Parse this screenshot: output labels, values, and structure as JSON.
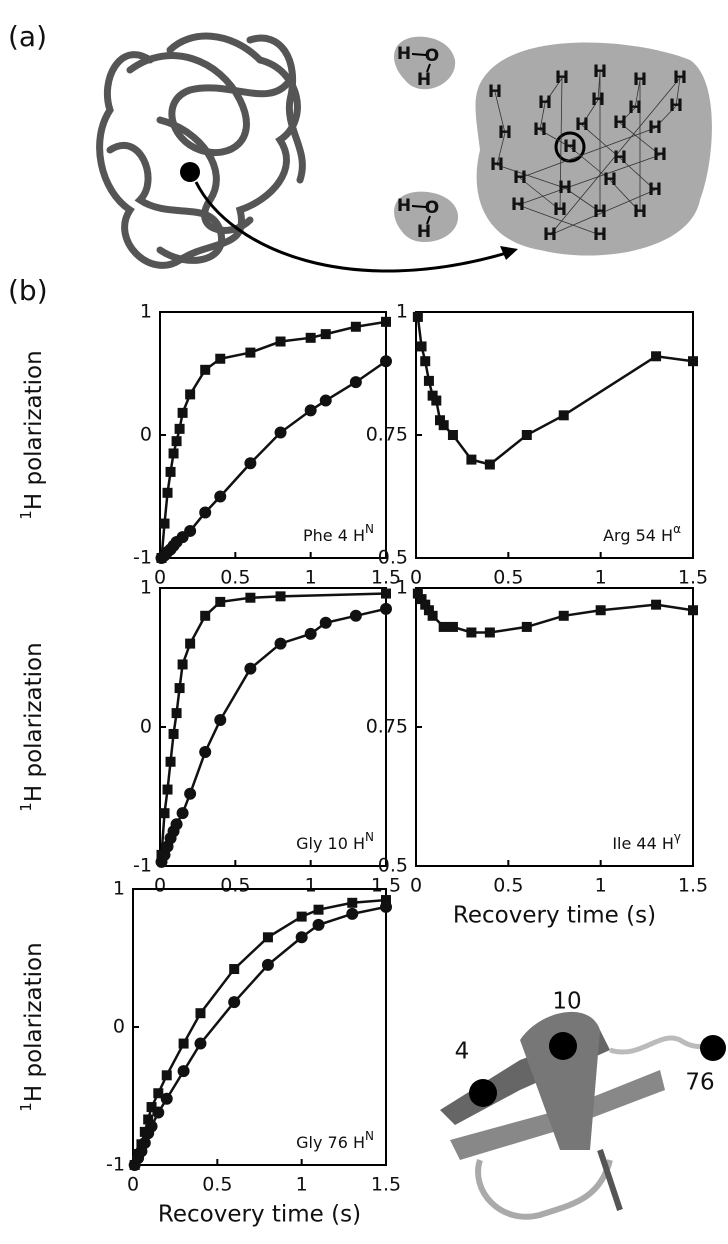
{
  "panel_a": {
    "label": "(a)",
    "water_1": [
      "H",
      "O",
      "H"
    ],
    "water_2": [
      "H",
      "O",
      "H"
    ],
    "cloud": [
      "H",
      "H",
      "H",
      "H",
      "H",
      "H",
      "H",
      "H",
      "H",
      "H",
      "H",
      "H",
      "H",
      "H",
      "H",
      "H",
      "H",
      "H",
      "H",
      "H",
      "H",
      "H",
      "H",
      "H",
      "H",
      "H",
      "H",
      "H"
    ]
  },
  "panel_b": {
    "label": "(b)",
    "residues": [
      "10",
      "4",
      "76"
    ]
  },
  "chart_data": [
    {
      "type": "scatter",
      "ylabel_sup": "1",
      "ylabel": "H polarization",
      "label": "Phe 4 H",
      "label_sup": "N",
      "xlim": [
        0,
        1.5
      ],
      "ylim": [
        -1,
        1
      ],
      "xticks": [
        0,
        0.5,
        1,
        1.5
      ],
      "yticks": [
        -1,
        0,
        1
      ],
      "grid": false,
      "series": [
        {
          "marker": "square",
          "color": "#111111",
          "x": [
            0.01,
            0.03,
            0.05,
            0.07,
            0.09,
            0.11,
            0.13,
            0.15,
            0.2,
            0.3,
            0.4,
            0.6,
            0.8,
            1,
            1.1,
            1.3,
            1.5
          ],
          "values": [
            -1,
            -0.72,
            -0.47,
            -0.3,
            -0.15,
            -0.05,
            0.05,
            0.18,
            0.33,
            0.53,
            0.62,
            0.67,
            0.76,
            0.79,
            0.82,
            0.88,
            0.92
          ]
        },
        {
          "marker": "circle",
          "color": "#111111",
          "x": [
            0.01,
            0.03,
            0.05,
            0.07,
            0.09,
            0.11,
            0.15,
            0.2,
            0.3,
            0.4,
            0.6,
            0.8,
            1,
            1.1,
            1.3,
            1.5
          ],
          "values": [
            -1,
            -0.98,
            -0.95,
            -0.93,
            -0.9,
            -0.87,
            -0.83,
            -0.78,
            -0.63,
            -0.5,
            -0.23,
            0.02,
            0.2,
            0.28,
            0.43,
            0.6
          ]
        }
      ]
    },
    {
      "type": "scatter",
      "label": "Arg 54 H",
      "label_sup": "α",
      "xlim": [
        0,
        1.5
      ],
      "ylim": [
        0.5,
        1
      ],
      "xticks": [
        0,
        0.5,
        1,
        1.5
      ],
      "yticks": [
        0.5,
        0.75,
        1
      ],
      "grid": false,
      "series": [
        {
          "marker": "square",
          "color": "#111111",
          "x": [
            0.01,
            0.03,
            0.05,
            0.07,
            0.09,
            0.11,
            0.13,
            0.15,
            0.2,
            0.3,
            0.4,
            0.6,
            0.8,
            1.3,
            1.5
          ],
          "values": [
            0.99,
            0.93,
            0.9,
            0.86,
            0.83,
            0.82,
            0.78,
            0.77,
            0.75,
            0.7,
            0.69,
            0.75,
            0.79,
            0.91,
            0.9
          ]
        }
      ]
    },
    {
      "type": "scatter",
      "ylabel_sup": "1",
      "ylabel": "H polarization",
      "label": "Gly 10 H",
      "label_sup": "N",
      "xlim": [
        0,
        1.5
      ],
      "ylim": [
        -1,
        1
      ],
      "xticks": [
        0,
        0.5,
        1,
        1.5
      ],
      "yticks": [
        -1,
        0,
        1
      ],
      "grid": false,
      "series": [
        {
          "marker": "square",
          "color": "#111111",
          "x": [
            0.01,
            0.03,
            0.05,
            0.07,
            0.09,
            0.11,
            0.13,
            0.15,
            0.2,
            0.3,
            0.4,
            0.6,
            0.8,
            1.5
          ],
          "values": [
            -0.92,
            -0.62,
            -0.45,
            -0.25,
            -0.05,
            0.1,
            0.28,
            0.45,
            0.6,
            0.8,
            0.9,
            0.93,
            0.94,
            0.96
          ]
        },
        {
          "marker": "circle",
          "color": "#111111",
          "x": [
            0.01,
            0.03,
            0.05,
            0.07,
            0.09,
            0.11,
            0.15,
            0.2,
            0.3,
            0.4,
            0.6,
            0.8,
            1,
            1.1,
            1.3,
            1.5
          ],
          "values": [
            -0.97,
            -0.92,
            -0.86,
            -0.8,
            -0.75,
            -0.7,
            -0.62,
            -0.48,
            -0.18,
            0.05,
            0.42,
            0.6,
            0.67,
            0.75,
            0.8,
            0.85
          ]
        }
      ]
    },
    {
      "type": "scatter",
      "xlabel": "Recovery time (s)",
      "label": "Ile 44 H",
      "label_sup": "γ",
      "xlim": [
        0,
        1.5
      ],
      "ylim": [
        0.5,
        1
      ],
      "xticks": [
        0,
        0.5,
        1,
        1.5
      ],
      "yticks": [
        0.5,
        0.75,
        1
      ],
      "grid": false,
      "series": [
        {
          "marker": "square",
          "color": "#111111",
          "x": [
            0.01,
            0.03,
            0.05,
            0.07,
            0.09,
            0.15,
            0.2,
            0.3,
            0.4,
            0.6,
            0.8,
            1,
            1.3,
            1.5
          ],
          "values": [
            0.99,
            0.98,
            0.97,
            0.96,
            0.95,
            0.93,
            0.93,
            0.92,
            0.92,
            0.93,
            0.95,
            0.96,
            0.97,
            0.96
          ]
        }
      ]
    },
    {
      "type": "scatter",
      "ylabel_sup": "1",
      "ylabel": "H polarization",
      "xlabel": "Recovery time (s)",
      "label": "Gly 76 H",
      "label_sup": "N",
      "xlim": [
        0,
        1.5
      ],
      "ylim": [
        -1,
        1
      ],
      "xticks": [
        0,
        0.5,
        1,
        1.5
      ],
      "yticks": [
        -1,
        0,
        1
      ],
      "grid": false,
      "series": [
        {
          "marker": "square",
          "color": "#111111",
          "x": [
            0.01,
            0.03,
            0.05,
            0.07,
            0.09,
            0.11,
            0.15,
            0.2,
            0.3,
            0.4,
            0.6,
            0.8,
            1,
            1.1,
            1.3,
            1.5
          ],
          "values": [
            -1,
            -0.92,
            -0.85,
            -0.76,
            -0.67,
            -0.58,
            -0.48,
            -0.35,
            -0.12,
            0.1,
            0.42,
            0.65,
            0.8,
            0.85,
            0.9,
            0.92
          ]
        },
        {
          "marker": "circle",
          "color": "#111111",
          "x": [
            0.01,
            0.03,
            0.05,
            0.07,
            0.09,
            0.11,
            0.15,
            0.2,
            0.3,
            0.4,
            0.6,
            0.8,
            1,
            1.1,
            1.3,
            1.5
          ],
          "values": [
            -1,
            -0.95,
            -0.9,
            -0.84,
            -0.77,
            -0.72,
            -0.62,
            -0.52,
            -0.32,
            -0.12,
            0.18,
            0.45,
            0.65,
            0.74,
            0.82,
            0.87
          ]
        }
      ]
    }
  ]
}
